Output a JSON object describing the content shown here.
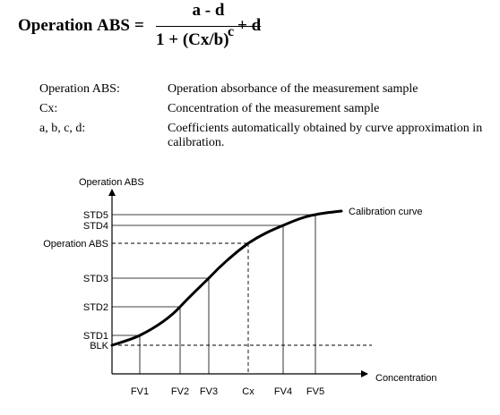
{
  "formula": {
    "label": "Operation",
    "lhs": "ABS",
    "equals": "=",
    "numerator": "a - d",
    "denominator": "1 + (Cx/b)",
    "exponent": "c",
    "tail": "+ d"
  },
  "definitions": [
    {
      "term": "Operation ABS:",
      "desc": "Operation absorbance of the measurement sample"
    },
    {
      "term": "Cx:",
      "desc": "Concentration of the measurement sample"
    },
    {
      "term": "a, b, c, d:",
      "desc": "Coefficients automatically obtained by curve approximation in calibration."
    }
  ],
  "graph": {
    "y_axis_title": "Operation ABS",
    "x_axis_title": "Concentration",
    "curve_label": "Calibration curve",
    "y_labels": [
      "STD5",
      "STD4",
      "Operation ABS",
      "STD3",
      "STD2",
      "STD1",
      "BLK"
    ],
    "x_labels": [
      "FV1",
      "FV2",
      "FV3",
      "Cx",
      "FV4",
      "FV5"
    ]
  }
}
